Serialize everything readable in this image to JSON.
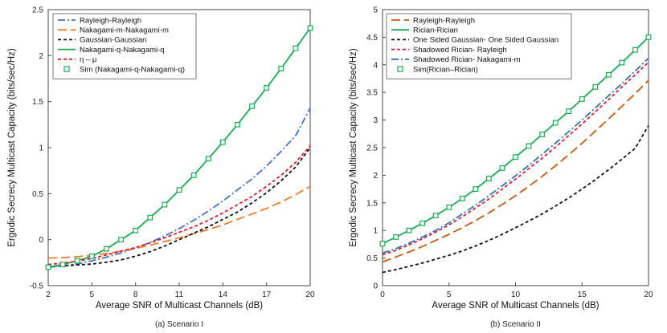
{
  "chart_data": [
    {
      "type": "line",
      "caption": "(a) Scenario I",
      "xlabel": "Average SNR of Multicast Channels (dB)",
      "ylabel": "Ergodic Secrecy Multicast Capacity (bits/sec/Hz)",
      "xlim": [
        2,
        20
      ],
      "ylim": [
        -0.5,
        2.5
      ],
      "xticks": [
        2,
        5,
        8,
        11,
        14,
        17,
        20
      ],
      "yticks": [
        -0.5,
        0,
        0.5,
        1,
        1.5,
        2,
        2.5
      ],
      "ytick_labels": [
        "-0.5",
        "0",
        "0.5",
        "1",
        "1.5",
        "2",
        "2.5"
      ],
      "x": [
        2,
        3,
        4,
        5,
        6,
        7,
        8,
        9,
        10,
        11,
        12,
        13,
        14,
        15,
        16,
        17,
        18,
        19,
        20
      ],
      "series": [
        {
          "name": "Rayleigh-Rayleigh",
          "color": "#4472C4",
          "dash": "dashdot",
          "values": [
            -0.3,
            -0.285,
            -0.265,
            -0.23,
            -0.19,
            -0.145,
            -0.09,
            -0.03,
            0.04,
            0.12,
            0.21,
            0.31,
            0.42,
            0.54,
            0.66,
            0.8,
            0.96,
            1.13,
            1.43
          ]
        },
        {
          "name": "Nakagami-m-Nakagami-m",
          "color": "#ED7D31",
          "dash": "longdash",
          "values": [
            -0.2,
            -0.195,
            -0.185,
            -0.17,
            -0.15,
            -0.125,
            -0.095,
            -0.06,
            -0.02,
            0.02,
            0.065,
            0.11,
            0.16,
            0.22,
            0.28,
            0.34,
            0.41,
            0.49,
            0.58
          ]
        },
        {
          "name": "Gaussian-Gaussian",
          "color": "#111111",
          "dash": "dash",
          "values": [
            -0.29,
            -0.285,
            -0.275,
            -0.265,
            -0.245,
            -0.22,
            -0.18,
            -0.13,
            -0.07,
            0.0,
            0.07,
            0.14,
            0.22,
            0.3,
            0.4,
            0.51,
            0.64,
            0.79,
            1.0
          ]
        },
        {
          "name": "Nakagami-q-Nakagami-q",
          "color": "#1AAA52",
          "dash": "solid",
          "values": [
            -0.3,
            -0.27,
            -0.23,
            -0.18,
            -0.1,
            0.0,
            0.1,
            0.24,
            0.38,
            0.54,
            0.7,
            0.88,
            1.06,
            1.25,
            1.45,
            1.65,
            1.86,
            2.08,
            2.3
          ]
        },
        {
          "name": "η – μ",
          "color": "#E8192C",
          "dash": "dash",
          "values": [
            -0.27,
            -0.255,
            -0.235,
            -0.205,
            -0.165,
            -0.125,
            -0.085,
            -0.035,
            0.02,
            0.08,
            0.14,
            0.21,
            0.29,
            0.38,
            0.47,
            0.58,
            0.7,
            0.84,
            1.02
          ]
        }
      ],
      "sim": {
        "name": "Sim (Nakagami-q-Nakagami-q)",
        "color": "#1AAA52",
        "x": [
          2,
          3,
          4,
          5,
          6,
          7,
          8,
          9,
          10,
          11,
          12,
          13,
          14,
          15,
          16,
          17,
          18,
          19,
          20
        ],
        "values": [
          -0.3,
          -0.27,
          -0.23,
          -0.18,
          -0.1,
          0.0,
          0.1,
          0.24,
          0.38,
          0.54,
          0.7,
          0.88,
          1.06,
          1.25,
          1.45,
          1.65,
          1.86,
          2.08,
          2.3
        ]
      }
    },
    {
      "type": "line",
      "caption": "(b) Scenario II",
      "xlabel": "Average SNR of Multicast Channels (dB)",
      "ylabel": "Ergodic Secrecy Multicast Capacity (bits/sec/Hz)",
      "xlim": [
        0,
        20
      ],
      "ylim": [
        0,
        5
      ],
      "xticks": [
        0,
        5,
        10,
        15,
        20
      ],
      "yticks": [
        0,
        0.5,
        1,
        1.5,
        2,
        2.5,
        3,
        3.5,
        4,
        4.5,
        5
      ],
      "ytick_labels": [
        "0",
        "0.5",
        "1",
        "1.5",
        "2",
        "2.5",
        "3",
        "3.5",
        "4",
        "4.5",
        "5"
      ],
      "x": [
        0,
        1,
        2,
        3,
        4,
        5,
        6,
        7,
        8,
        9,
        10,
        11,
        12,
        13,
        14,
        15,
        16,
        17,
        18,
        19,
        20
      ],
      "series": [
        {
          "name": "Rayleigh-Rayleigh",
          "color": "#C55A11",
          "dash": "longdash",
          "values": [
            0.43,
            0.52,
            0.61,
            0.71,
            0.82,
            0.93,
            1.05,
            1.18,
            1.32,
            1.47,
            1.63,
            1.8,
            1.98,
            2.17,
            2.37,
            2.58,
            2.8,
            3.02,
            3.25,
            3.48,
            3.72
          ]
        },
        {
          "name": "Rician-Rician",
          "color": "#1AAA52",
          "dash": "solid",
          "values": [
            0.76,
            0.88,
            1.0,
            1.13,
            1.27,
            1.42,
            1.58,
            1.75,
            1.94,
            2.13,
            2.33,
            2.53,
            2.74,
            2.95,
            3.16,
            3.38,
            3.6,
            3.82,
            4.04,
            4.27,
            4.5
          ]
        },
        {
          "name": "One Sided Gaussian- One Sided Gaussian",
          "color": "#111111",
          "dash": "dash",
          "values": [
            0.24,
            0.29,
            0.35,
            0.41,
            0.48,
            0.55,
            0.63,
            0.72,
            0.82,
            0.93,
            1.05,
            1.17,
            1.3,
            1.44,
            1.59,
            1.75,
            1.92,
            2.1,
            2.29,
            2.49,
            2.9
          ]
        },
        {
          "name": "Shadowed Rician- Rayleigh",
          "color": "#E8192C",
          "dash": "dash",
          "values": [
            0.56,
            0.64,
            0.74,
            0.85,
            0.97,
            1.1,
            1.25,
            1.41,
            1.57,
            1.75,
            1.93,
            2.12,
            2.31,
            2.51,
            2.72,
            2.93,
            3.15,
            3.37,
            3.6,
            3.82,
            4.05
          ]
        },
        {
          "name": "Shadowed Rician- Nakagami-m",
          "color": "#2E75B6",
          "dash": "dashdot",
          "values": [
            0.59,
            0.67,
            0.77,
            0.88,
            1.0,
            1.14,
            1.3,
            1.46,
            1.63,
            1.81,
            1.99,
            2.18,
            2.38,
            2.58,
            2.79,
            3.0,
            3.22,
            3.44,
            3.66,
            3.89,
            4.12
          ]
        }
      ],
      "sim": {
        "name": "Sim(Rician–Rician)",
        "color": "#1AAA52",
        "x": [
          0,
          1,
          2,
          3,
          4,
          5,
          6,
          7,
          8,
          9,
          10,
          11,
          12,
          13,
          14,
          15,
          16,
          17,
          18,
          19,
          20
        ],
        "values": [
          0.76,
          0.88,
          1.0,
          1.13,
          1.27,
          1.42,
          1.58,
          1.75,
          1.94,
          2.13,
          2.33,
          2.53,
          2.74,
          2.95,
          3.16,
          3.38,
          3.6,
          3.82,
          4.04,
          4.27,
          4.5
        ]
      }
    }
  ]
}
